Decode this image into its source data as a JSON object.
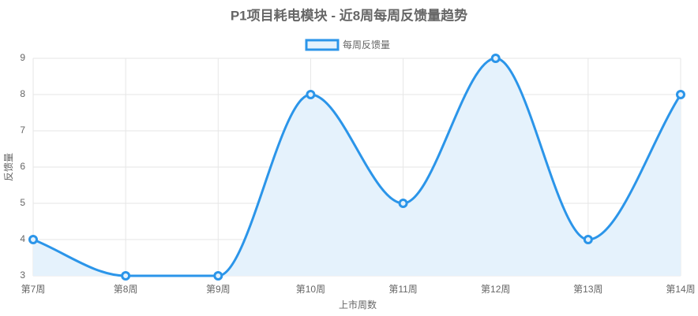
{
  "chart_data": {
    "type": "line",
    "title": "P1项目耗电模块 - 近8周每周反馈量趋势",
    "categories": [
      "第7周",
      "第8周",
      "第9周",
      "第10周",
      "第11周",
      "第12周",
      "第13周",
      "第14周"
    ],
    "series": [
      {
        "name": "每周反馈量",
        "color": "#2b95e9",
        "fill": "#e5f2fc",
        "values": [
          4,
          3,
          3,
          8,
          5,
          9,
          4,
          8
        ]
      }
    ],
    "ylim": [
      3,
      9
    ],
    "yticks": [
      3,
      4,
      5,
      6,
      7,
      8,
      9
    ],
    "grid": true,
    "x_label": "上市周数",
    "y_label": "反馈量",
    "legend": "top"
  }
}
